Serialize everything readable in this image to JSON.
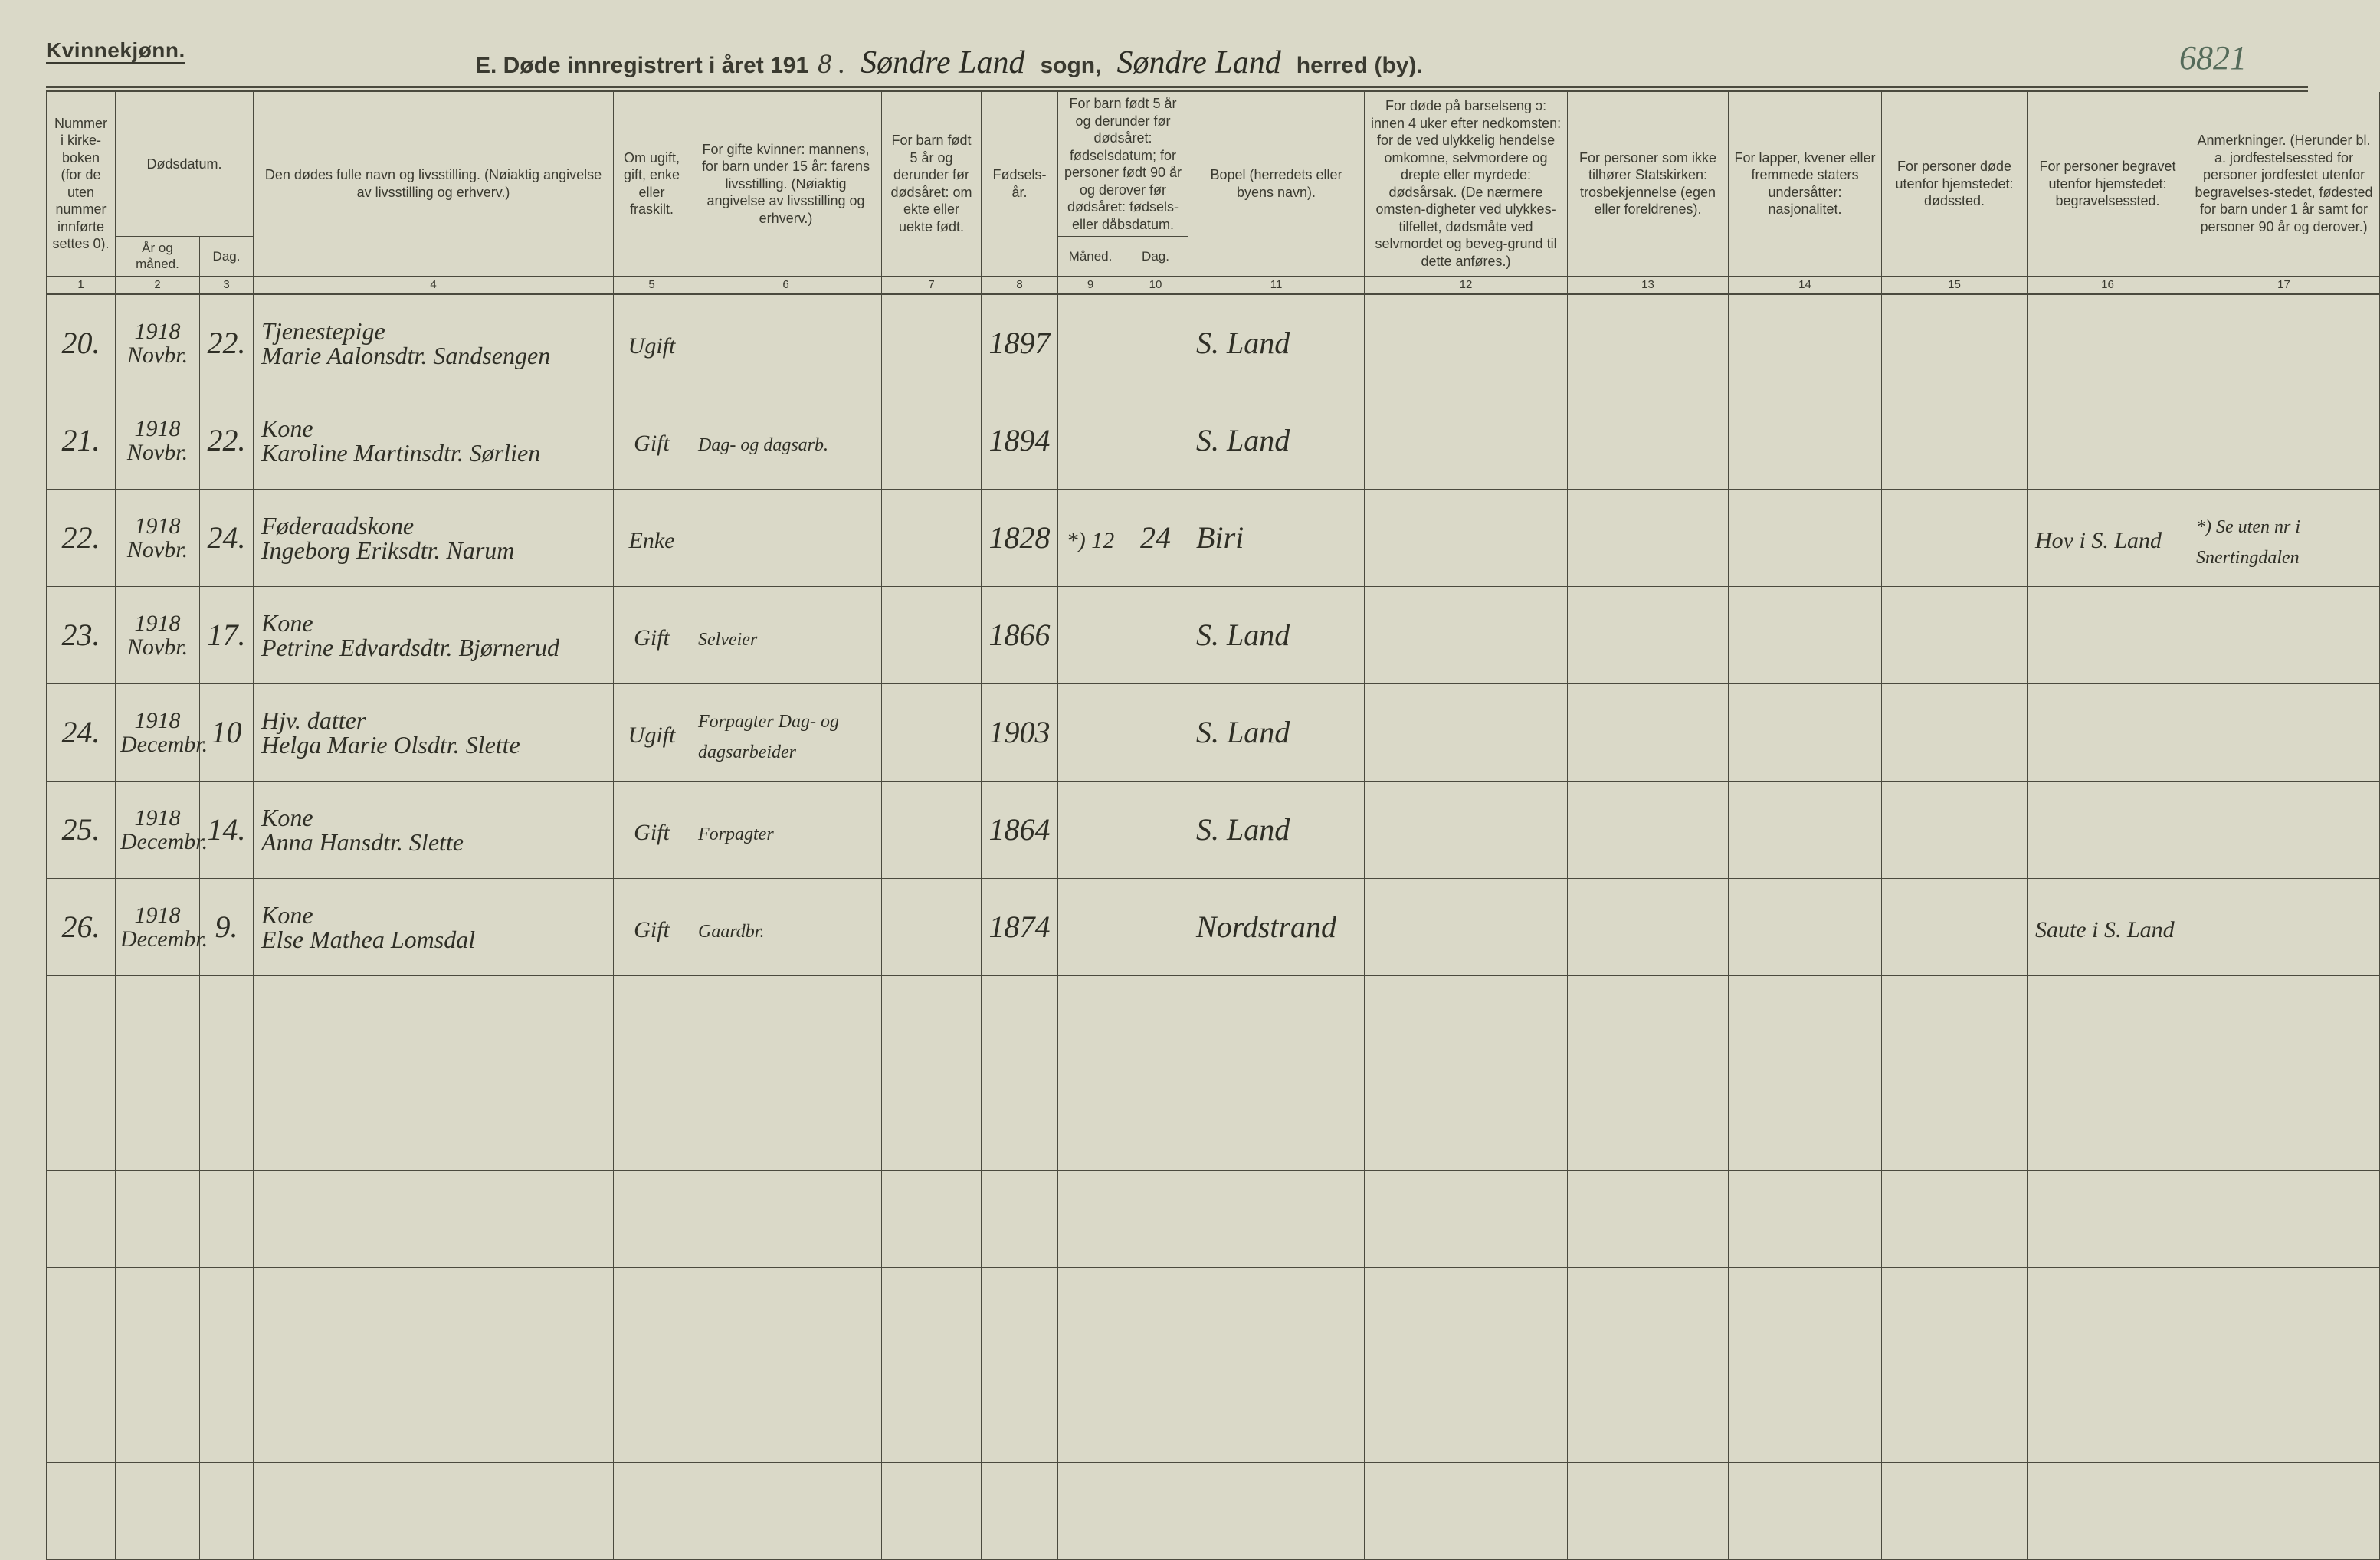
{
  "header": {
    "gender": "Kvinnekjønn.",
    "title_prefix": "E. Døde innregistrert i året 191",
    "year_suffix": "8 .",
    "parish_written": "Søndre Land",
    "sogn_label": "sogn,",
    "district_written": "Søndre Land",
    "herred_label": "herred (by).",
    "ref_number": "6821"
  },
  "columns": {
    "c1": "Nummer i kirke-boken (for de uten nummer innførte settes 0).",
    "c2_top": "Dødsdatum.",
    "c2a": "År og måned.",
    "c2b": "Dag.",
    "c4": "Den dødes fulle navn og livsstilling.\n(Nøiaktig angivelse av livsstilling og erhverv.)",
    "c5": "Om ugift, gift, enke eller fraskilt.",
    "c6": "For gifte kvinner: mannens,\nfor barn under 15 år: farens livsstilling.\n(Nøiaktig angivelse av livsstilling og erhverv.)",
    "c7": "For barn født 5 år og derunder før dødsåret: om ekte eller uekte født.",
    "c8": "Fødsels-år.",
    "c9_top": "For barn født 5 år og derunder før dødsåret: fødselsdatum; for personer født 90 år og derover før dødsåret: fødsels- eller dåbsdatum.",
    "c9a": "Måned.",
    "c9b": "Dag.",
    "c11": "Bopel\n(herredets eller byens navn).",
    "c12": "For døde på barselseng ɔ: innen 4 uker efter nedkomsten: for de ved ulykkelig hendelse omkomne, selvmordere og drepte eller myrdede: dødsårsak.\n(De nærmere omsten-digheter ved ulykkes-tilfellet, dødsmåte ved selvmordet og beveg-grund til dette anføres.)",
    "c13": "For personer som ikke tilhører Statskirken: trosbekjennelse (egen eller foreldrenes).",
    "c14": "For lapper, kvener eller fremmede staters undersåtter: nasjonalitet.",
    "c15": "For personer døde utenfor hjemstedet: dødssted.",
    "c16": "For personer begravet utenfor hjemstedet: begravelsessted.",
    "c17": "Anmerkninger.\n(Herunder bl. a. jordfestelsessted for personer jordfestet utenfor begravelses-stedet, fødested for barn under 1 år samt for personer 90 år og derover.)"
  },
  "colnums": [
    "1",
    "2",
    "3",
    "4",
    "5",
    "6",
    "7",
    "8",
    "9",
    "10",
    "11",
    "12",
    "13",
    "14",
    "15",
    "16",
    "17"
  ],
  "rows": [
    {
      "num": "20.",
      "year": "1918",
      "month": "Novbr.",
      "day": "22.",
      "name_top": "Tjenestepige",
      "name": "Marie Aalonsdtr. Sandsengen",
      "status": "Ugift",
      "spouse": "",
      "legit": "",
      "birth": "1897",
      "bm": "",
      "bd": "",
      "bopel": "S. Land",
      "cause": "",
      "faith": "",
      "nation": "",
      "deathplace": "",
      "burial": "",
      "notes": ""
    },
    {
      "num": "21.",
      "year": "1918",
      "month": "Novbr.",
      "day": "22.",
      "name_top": "Kone",
      "name": "Karoline Martinsdtr. Sørlien",
      "status": "Gift",
      "spouse": "Dag- og dagsarb.",
      "legit": "",
      "birth": "1894",
      "bm": "",
      "bd": "",
      "bopel": "S. Land",
      "cause": "",
      "faith": "",
      "nation": "",
      "deathplace": "",
      "burial": "",
      "notes": ""
    },
    {
      "num": "22.",
      "year": "1918",
      "month": "Novbr.",
      "day": "24.",
      "name_top": "Føderaadskone",
      "name": "Ingeborg Eriksdtr. Narum",
      "status": "Enke",
      "spouse": "",
      "legit": "",
      "birth": "1828",
      "bm": "*) 12",
      "bd": "24",
      "bopel": "Biri",
      "cause": "",
      "faith": "",
      "nation": "",
      "deathplace": "",
      "burial": "Hov i S. Land",
      "notes": "*) Se uten nr i Snertingdalen"
    },
    {
      "num": "23.",
      "year": "1918",
      "month": "Novbr.",
      "day": "17.",
      "name_top": "Kone",
      "name": "Petrine Edvardsdtr. Bjørnerud",
      "status": "Gift",
      "spouse": "Selveier",
      "legit": "",
      "birth": "1866",
      "bm": "",
      "bd": "",
      "bopel": "S. Land",
      "cause": "",
      "faith": "",
      "nation": "",
      "deathplace": "",
      "burial": "",
      "notes": ""
    },
    {
      "num": "24.",
      "year": "1918",
      "month": "Decembr.",
      "day": "10",
      "name_top": "Hjv. datter",
      "name": "Helga Marie Olsdtr. Slette",
      "status": "Ugift",
      "spouse": "Forpagter Dag- og dagsarbeider",
      "legit": "",
      "birth": "1903",
      "bm": "",
      "bd": "",
      "bopel": "S. Land",
      "cause": "",
      "faith": "",
      "nation": "",
      "deathplace": "",
      "burial": "",
      "notes": ""
    },
    {
      "num": "25.",
      "year": "1918",
      "month": "Decembr.",
      "day": "14.",
      "name_top": "Kone",
      "name": "Anna Hansdtr. Slette",
      "status": "Gift",
      "spouse": "Forpagter",
      "legit": "",
      "birth": "1864",
      "bm": "",
      "bd": "",
      "bopel": "S. Land",
      "cause": "",
      "faith": "",
      "nation": "",
      "deathplace": "",
      "burial": "",
      "notes": ""
    },
    {
      "num": "26.",
      "year": "1918",
      "month": "Decembr.",
      "day": "9.",
      "name_top": "Kone",
      "name": "Else Mathea Lomsdal",
      "status": "Gift",
      "spouse": "Gaardbr.",
      "legit": "",
      "birth": "1874",
      "bm": "",
      "bd": "",
      "bopel": "Nordstrand",
      "cause": "",
      "faith": "",
      "nation": "",
      "deathplace": "",
      "burial": "Saute i S. Land",
      "notes": ""
    }
  ],
  "empty_rows": 6,
  "style": {
    "page_bg": "#dad9c8",
    "rule_color": "#4a4a3e",
    "print_color": "#3a3a30",
    "hand_color": "#2f2f26",
    "ref_color": "#556b5a",
    "header_fontsize_pt": 18,
    "hand_fontsize_pt": 30
  }
}
